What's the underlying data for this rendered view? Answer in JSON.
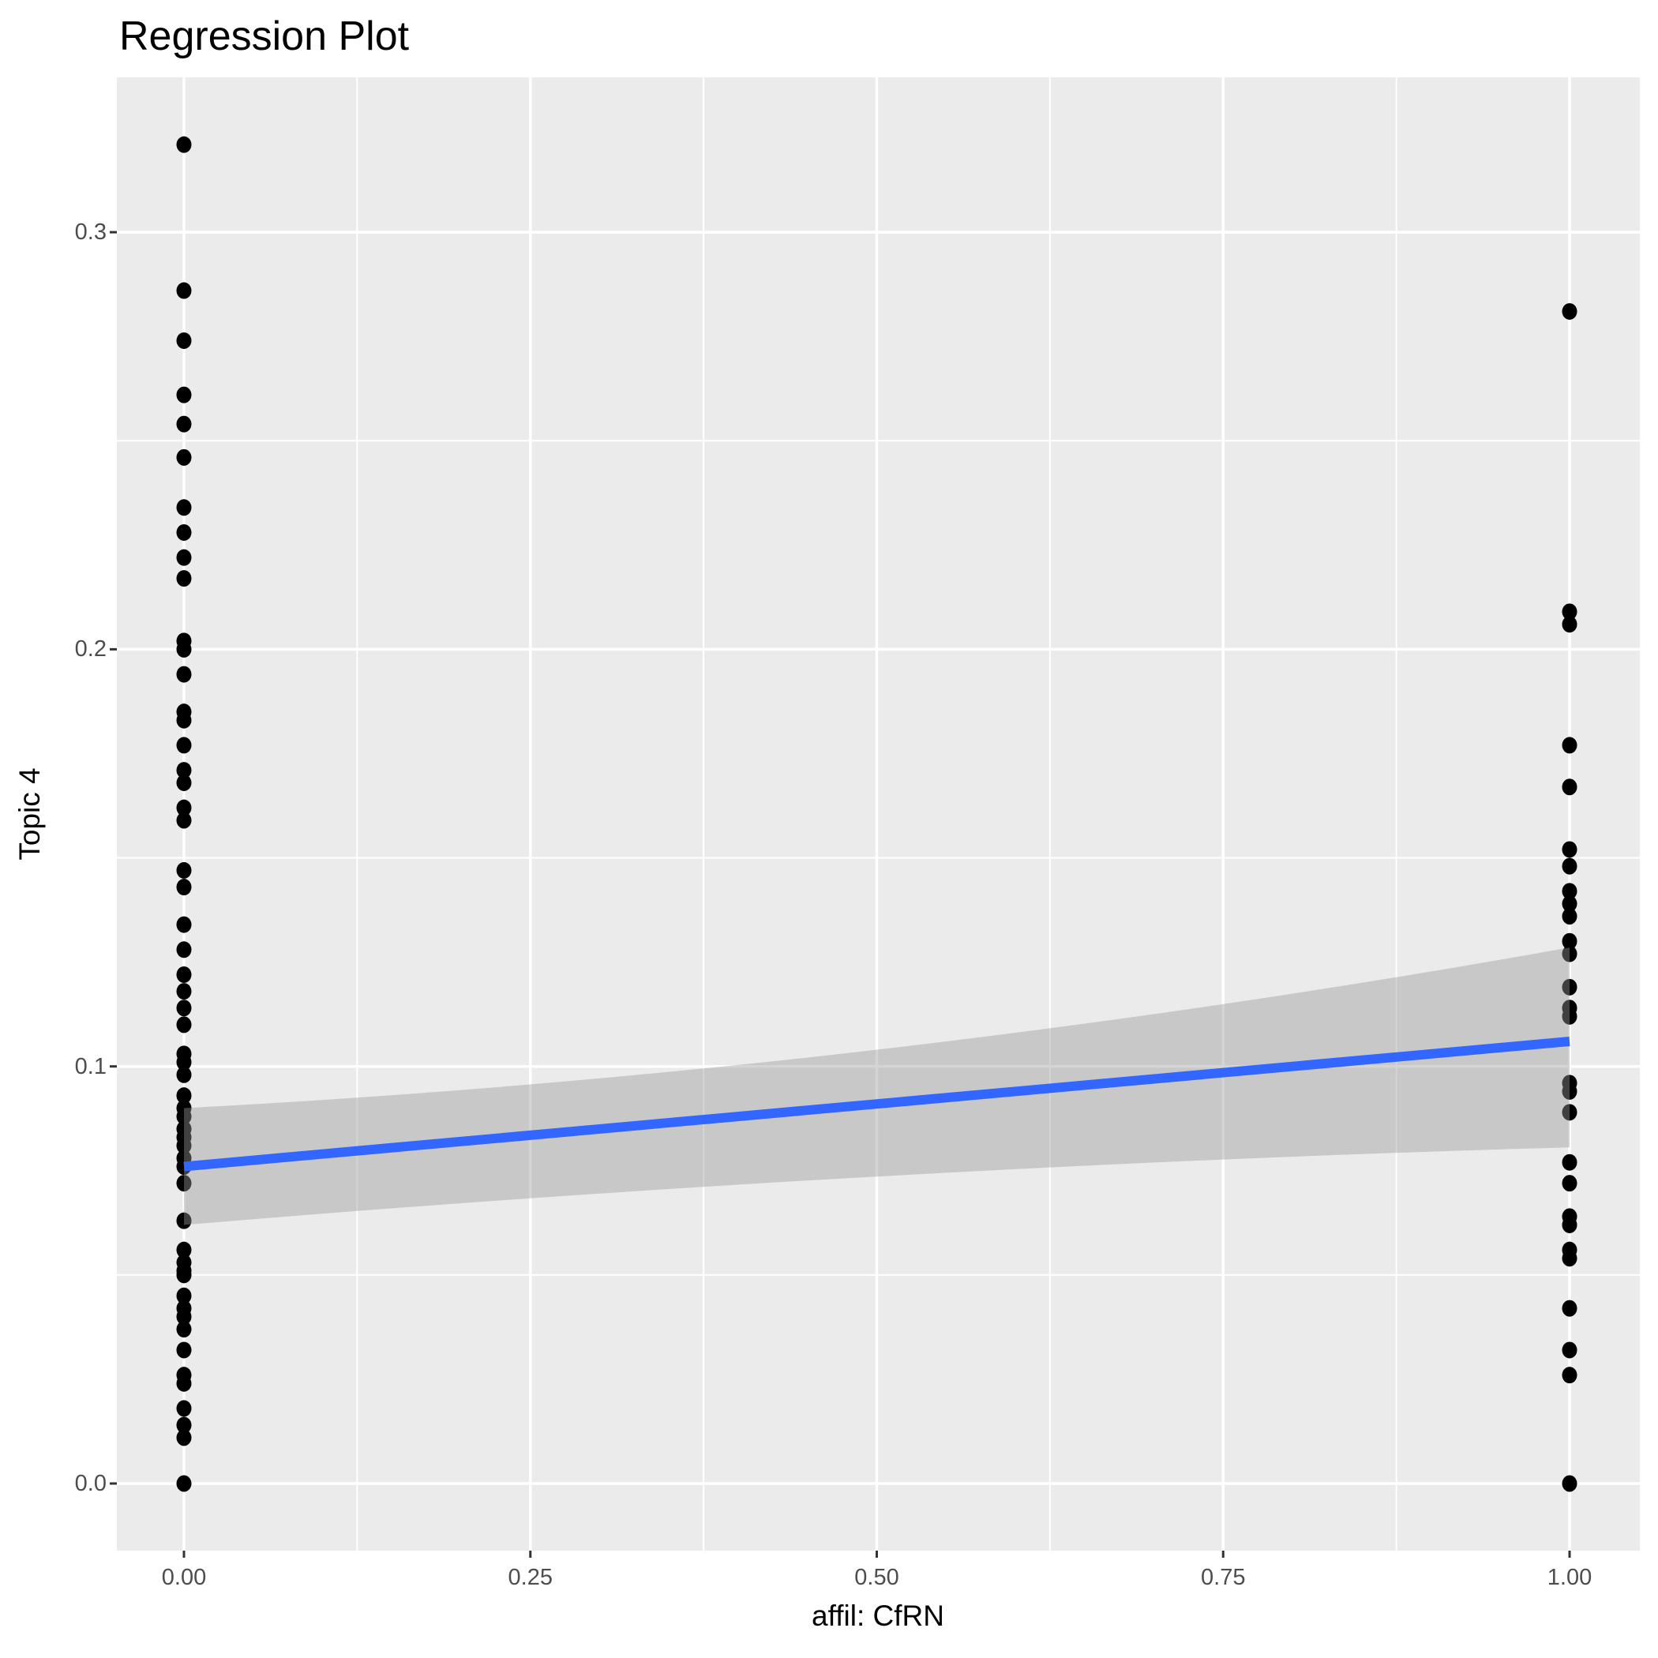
{
  "chart_data": {
    "type": "scatter",
    "title": "Regression Plot",
    "xlabel": "affil: CfRN",
    "ylabel": "Topic 4",
    "legend": "none",
    "grid": "on",
    "x_axis": {
      "tick_values": [
        0,
        0.25,
        0.5,
        0.75,
        1.0
      ],
      "tick_labels": [
        "0.00",
        "0.25",
        "0.50",
        "0.75",
        "1.00"
      ],
      "minor_tick_values": [
        0.125,
        0.375,
        0.625,
        0.875
      ],
      "range": [
        -0.048,
        1.051
      ]
    },
    "y_axis": {
      "tick_values": [
        0,
        0.1,
        0.2,
        0.3
      ],
      "tick_labels": [
        "0.0",
        "0.1",
        "0.2",
        "0.3"
      ],
      "minor_tick_values": [
        0.05,
        0.15,
        0.25
      ],
      "range": [
        -0.016,
        0.337
      ]
    },
    "series": [
      {
        "name": "affil: CfRN = 0",
        "x": 0,
        "y": [
          0.321,
          0.286,
          0.274,
          0.261,
          0.254,
          0.246,
          0.234,
          0.228,
          0.222,
          0.217,
          0.202,
          0.2,
          0.194,
          0.185,
          0.183,
          0.177,
          0.171,
          0.168,
          0.162,
          0.159,
          0.147,
          0.143,
          0.134,
          0.128,
          0.122,
          0.118,
          0.114,
          0.11,
          0.103,
          0.101,
          0.098,
          0.093,
          0.09,
          0.088,
          0.085,
          0.083,
          0.081,
          0.078,
          0.076,
          0.072,
          0.063,
          0.056,
          0.053,
          0.051,
          0.05,
          0.045,
          0.042,
          0.04,
          0.037,
          0.032,
          0.026,
          0.024,
          0.018,
          0.014,
          0.011,
          0.0
        ]
      },
      {
        "name": "affil: CfRN = 1",
        "x": 1,
        "y": [
          0.281,
          0.209,
          0.206,
          0.177,
          0.167,
          0.152,
          0.148,
          0.142,
          0.139,
          0.136,
          0.13,
          0.127,
          0.119,
          0.114,
          0.112,
          0.096,
          0.094,
          0.089,
          0.077,
          0.072,
          0.064,
          0.062,
          0.056,
          0.054,
          0.042,
          0.032,
          0.026,
          0.0
        ]
      }
    ],
    "regression_line": {
      "x": [
        0,
        1
      ],
      "y": [
        0.076,
        0.106
      ]
    },
    "confidence_band": {
      "x": [
        0,
        1
      ],
      "upper": [
        0.09,
        0.1285
      ],
      "lower": [
        0.062,
        0.0806
      ],
      "upper_mid": 0.104,
      "lower_mid": 0.0736
    },
    "colors": {
      "point": "#000000",
      "line": "#3366FF",
      "panel_bg": "#EBEBEB",
      "grid": "#FFFFFF",
      "tick_label": "#4D4D4D",
      "tick_mark": "#333333",
      "band": "rgba(153,153,153,0.42)",
      "title": "#000000"
    }
  }
}
